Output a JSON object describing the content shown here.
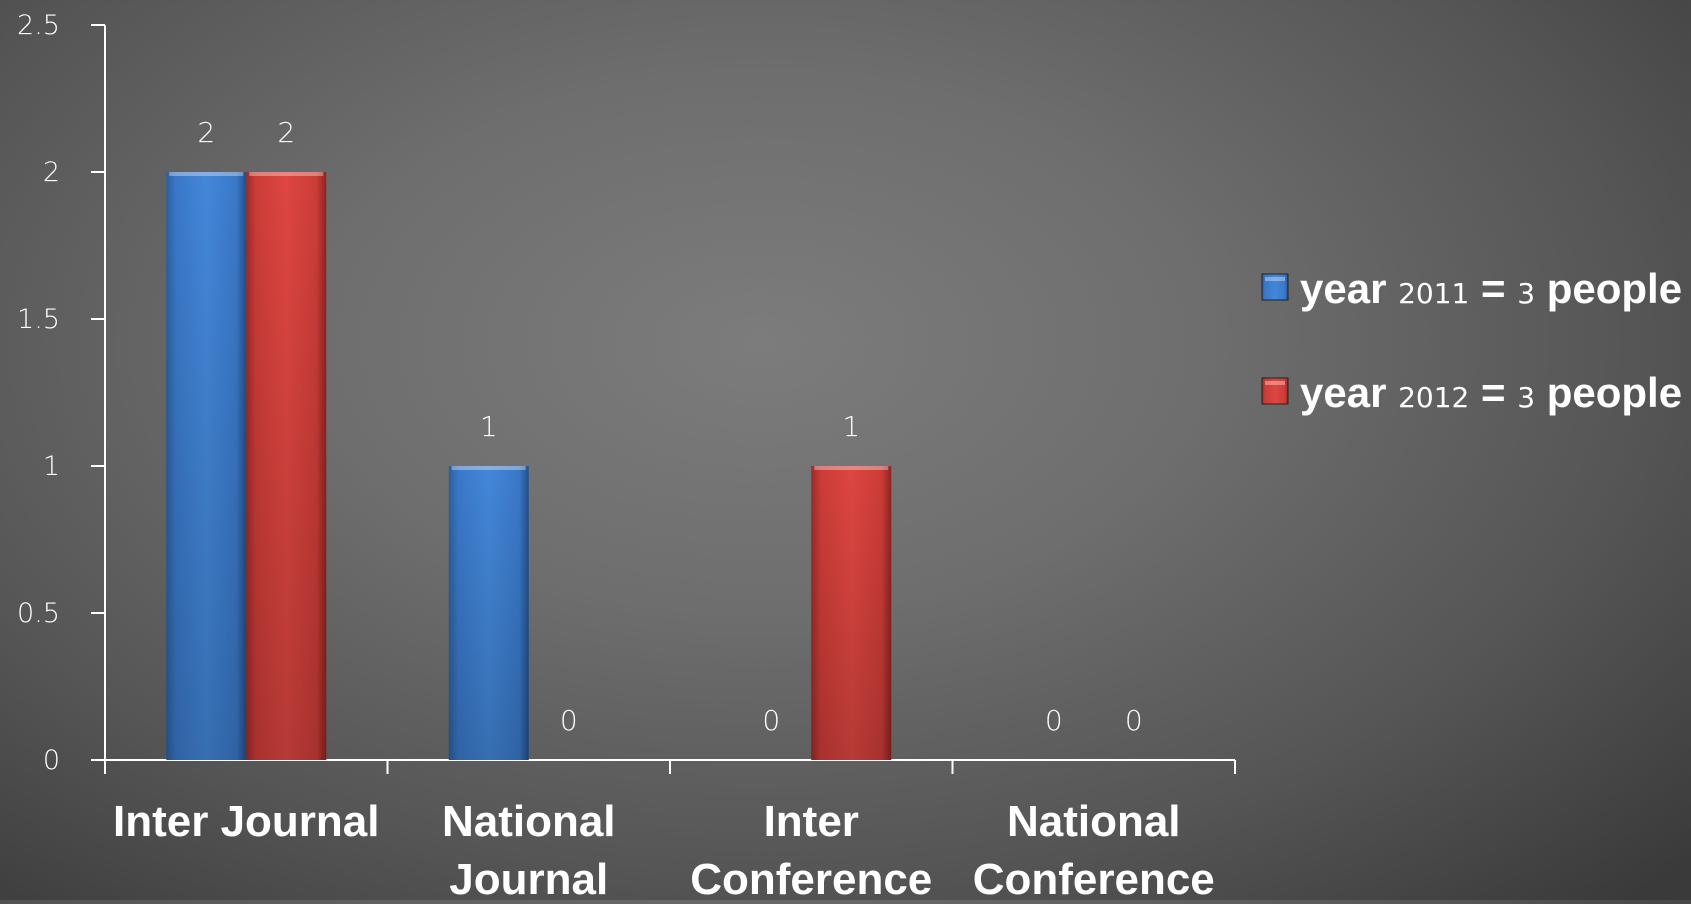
{
  "chart_data": {
    "type": "bar",
    "categories": [
      [
        "Inter Journal"
      ],
      [
        "National",
        "Journal"
      ],
      [
        "Inter",
        "Conference"
      ],
      [
        "National",
        "Conference"
      ]
    ],
    "series": [
      {
        "name": "year 2011 = 3 people",
        "name_parts": [
          {
            "text": "year ",
            "style": "bold"
          },
          {
            "text": "2011",
            "style": "num"
          },
          {
            "text": " = ",
            "style": "bold"
          },
          {
            "text": "3",
            "style": "num"
          },
          {
            "text": " people",
            "style": "bold"
          }
        ],
        "color": "#3a7bd1",
        "values": [
          2,
          1,
          0,
          0
        ]
      },
      {
        "name": "year 2012 = 3 people",
        "name_parts": [
          {
            "text": "year ",
            "style": "bold"
          },
          {
            "text": "2012",
            "style": "num"
          },
          {
            "text": " = ",
            "style": "bold"
          },
          {
            "text": "3",
            "style": "num"
          },
          {
            "text": " people",
            "style": "bold"
          }
        ],
        "color": "#d23e3a",
        "values": [
          2,
          0,
          1,
          0
        ]
      }
    ],
    "ylim": [
      0,
      2.5
    ],
    "yticks": [
      "0",
      "0.5",
      "1",
      "1.5",
      "2",
      "2.5"
    ],
    "ytick_values": [
      0,
      0.5,
      1,
      1.5,
      2,
      2.5
    ],
    "data_labels": true,
    "grid": false,
    "legend_position": "right",
    "title": "",
    "xlabel": "",
    "ylabel": ""
  }
}
